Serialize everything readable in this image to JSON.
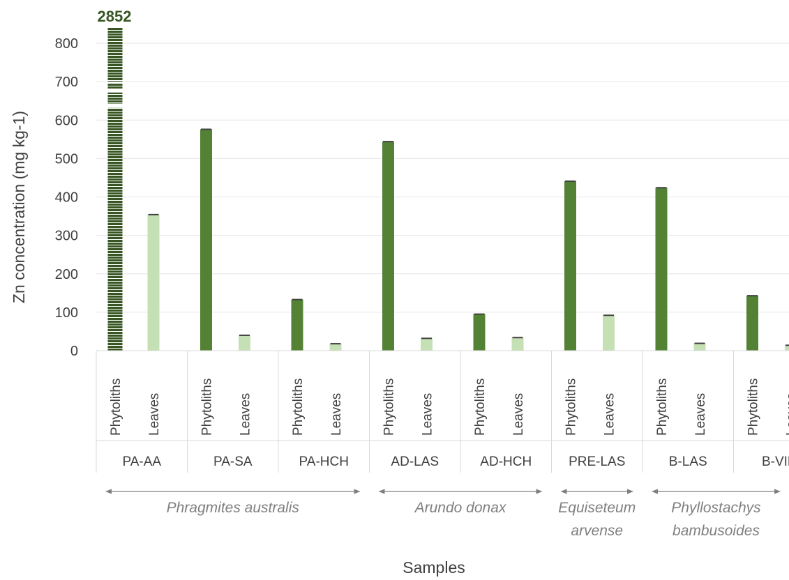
{
  "chart_data": {
    "type": "bar",
    "title": "",
    "xlabel": "Samples",
    "ylabel": "Zn concentration (mg kg-1)",
    "ylim": [
      0,
      800
    ],
    "yticks": [
      0,
      100,
      200,
      300,
      400,
      500,
      600,
      700,
      800
    ],
    "grid": "horizontal",
    "legend": "none",
    "subcategories": [
      "Phytoliths",
      "Leaves"
    ],
    "groups": [
      "PA-AA",
      "PA-SA",
      "PA-HCH",
      "AD-LAS",
      "AD-HCH",
      "PRE-LAS",
      "B-LAS",
      "B-VIE"
    ],
    "series": [
      {
        "values": [
          2852,
          576,
          133,
          544,
          95,
          441,
          424,
          143
        ],
        "color": "#548235"
      },
      {
        "values": [
          354,
          40,
          18,
          32,
          34,
          92,
          19,
          14
        ],
        "color": "#c5e0b4"
      }
    ],
    "axis_break": {
      "value_label": "2852"
    },
    "species": [
      {
        "lines": [
          "Phragmites australis"
        ],
        "groups": [
          0,
          2
        ]
      },
      {
        "lines": [
          "Arundo donax"
        ],
        "groups": [
          3,
          4
        ]
      },
      {
        "lines": [
          "Equiseteum",
          "arvense"
        ],
        "groups": [
          5,
          5
        ]
      },
      {
        "lines": [
          "Phyllostachys",
          "bambusoides"
        ],
        "groups": [
          6,
          7
        ]
      }
    ]
  }
}
